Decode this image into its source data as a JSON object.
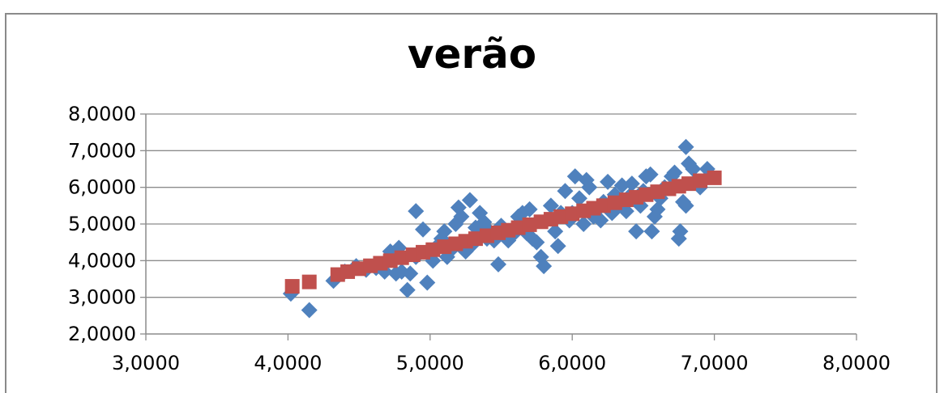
{
  "chart_data": {
    "type": "scatter",
    "title": "verão",
    "xlabel": "",
    "ylabel": "",
    "xlim": [
      3,
      8
    ],
    "ylim": [
      2,
      8
    ],
    "x_ticks": [
      "3,0000",
      "4,0000",
      "5,0000",
      "6,0000",
      "7,0000",
      "8,0000"
    ],
    "y_ticks": [
      "2,0000",
      "3,0000",
      "4,0000",
      "5,0000",
      "6,0000",
      "7,0000",
      "8,0000"
    ],
    "grid": true,
    "legend": "none",
    "series": [
      {
        "color": "#4f81bd",
        "marker": "diamond",
        "points": [
          [
            4.02,
            3.1
          ],
          [
            4.15,
            2.65
          ],
          [
            4.32,
            3.45
          ],
          [
            4.4,
            3.7
          ],
          [
            4.48,
            3.85
          ],
          [
            4.55,
            3.75
          ],
          [
            4.62,
            3.8
          ],
          [
            4.68,
            3.7
          ],
          [
            4.72,
            4.25
          ],
          [
            4.76,
            3.65
          ],
          [
            4.78,
            4.35
          ],
          [
            4.8,
            3.7
          ],
          [
            4.84,
            3.2
          ],
          [
            4.86,
            3.65
          ],
          [
            4.9,
            4.1
          ],
          [
            4.9,
            5.35
          ],
          [
            4.95,
            4.85
          ],
          [
            4.98,
            3.4
          ],
          [
            5.0,
            4.2
          ],
          [
            5.02,
            4.0
          ],
          [
            5.05,
            4.4
          ],
          [
            5.08,
            4.6
          ],
          [
            5.1,
            4.8
          ],
          [
            5.12,
            4.1
          ],
          [
            5.15,
            4.3
          ],
          [
            5.18,
            5.0
          ],
          [
            5.2,
            5.45
          ],
          [
            5.22,
            5.2
          ],
          [
            5.25,
            4.25
          ],
          [
            5.28,
            5.65
          ],
          [
            5.3,
            4.45
          ],
          [
            5.32,
            4.9
          ],
          [
            5.35,
            5.3
          ],
          [
            5.38,
            5.05
          ],
          [
            5.4,
            4.6
          ],
          [
            5.42,
            4.8
          ],
          [
            5.45,
            4.55
          ],
          [
            5.48,
            3.9
          ],
          [
            5.5,
            4.95
          ],
          [
            5.55,
            4.55
          ],
          [
            5.58,
            4.7
          ],
          [
            5.6,
            4.9
          ],
          [
            5.62,
            5.2
          ],
          [
            5.65,
            5.3
          ],
          [
            5.68,
            4.75
          ],
          [
            5.7,
            5.4
          ],
          [
            5.72,
            4.6
          ],
          [
            5.75,
            4.5
          ],
          [
            5.78,
            4.1
          ],
          [
            5.8,
            3.85
          ],
          [
            5.82,
            5.1
          ],
          [
            5.85,
            5.5
          ],
          [
            5.88,
            4.8
          ],
          [
            5.9,
            4.4
          ],
          [
            5.92,
            5.3
          ],
          [
            5.95,
            5.9
          ],
          [
            5.98,
            5.1
          ],
          [
            6.0,
            5.3
          ],
          [
            6.02,
            6.3
          ],
          [
            6.05,
            5.7
          ],
          [
            6.08,
            5.0
          ],
          [
            6.1,
            6.2
          ],
          [
            6.12,
            6.0
          ],
          [
            6.15,
            5.2
          ],
          [
            6.18,
            5.4
          ],
          [
            6.2,
            5.1
          ],
          [
            6.22,
            5.6
          ],
          [
            6.25,
            6.15
          ],
          [
            6.28,
            5.3
          ],
          [
            6.3,
            5.8
          ],
          [
            6.32,
            5.5
          ],
          [
            6.35,
            6.05
          ],
          [
            6.38,
            5.35
          ],
          [
            6.4,
            5.75
          ],
          [
            6.42,
            6.1
          ],
          [
            6.45,
            4.8
          ],
          [
            6.48,
            5.5
          ],
          [
            6.5,
            5.9
          ],
          [
            6.52,
            6.3
          ],
          [
            6.55,
            6.35
          ],
          [
            6.56,
            4.8
          ],
          [
            6.58,
            5.2
          ],
          [
            6.6,
            5.4
          ],
          [
            6.62,
            5.7
          ],
          [
            6.65,
            6.0
          ],
          [
            6.7,
            6.3
          ],
          [
            6.72,
            6.4
          ],
          [
            6.75,
            4.6
          ],
          [
            6.76,
            4.8
          ],
          [
            6.78,
            5.6
          ],
          [
            6.8,
            7.1
          ],
          [
            6.8,
            5.5
          ],
          [
            6.82,
            6.65
          ],
          [
            6.85,
            6.5
          ],
          [
            6.9,
            6.0
          ],
          [
            6.95,
            6.5
          ]
        ]
      },
      {
        "color": "#c0504d",
        "marker": "square",
        "points": [
          [
            4.03,
            3.3
          ],
          [
            4.15,
            3.42
          ],
          [
            4.35,
            3.62
          ],
          [
            4.42,
            3.7
          ],
          [
            4.5,
            3.78
          ],
          [
            4.58,
            3.86
          ],
          [
            4.65,
            3.93
          ],
          [
            4.72,
            4.0
          ],
          [
            4.8,
            4.08
          ],
          [
            4.88,
            4.16
          ],
          [
            4.95,
            4.23
          ],
          [
            5.02,
            4.3
          ],
          [
            5.1,
            4.38
          ],
          [
            5.18,
            4.46
          ],
          [
            5.25,
            4.53
          ],
          [
            5.32,
            4.6
          ],
          [
            5.4,
            4.68
          ],
          [
            5.48,
            4.76
          ],
          [
            5.55,
            4.83
          ],
          [
            5.62,
            4.9
          ],
          [
            5.7,
            4.98
          ],
          [
            5.78,
            5.06
          ],
          [
            5.85,
            5.13
          ],
          [
            5.92,
            5.2
          ],
          [
            6.0,
            5.28
          ],
          [
            6.08,
            5.36
          ],
          [
            6.15,
            5.43
          ],
          [
            6.22,
            5.5
          ],
          [
            6.3,
            5.58
          ],
          [
            6.38,
            5.66
          ],
          [
            6.45,
            5.73
          ],
          [
            6.52,
            5.8
          ],
          [
            6.6,
            5.88
          ],
          [
            6.68,
            5.96
          ],
          [
            6.75,
            6.03
          ],
          [
            6.82,
            6.1
          ],
          [
            6.9,
            6.18
          ],
          [
            7.0,
            6.26
          ]
        ]
      }
    ]
  }
}
